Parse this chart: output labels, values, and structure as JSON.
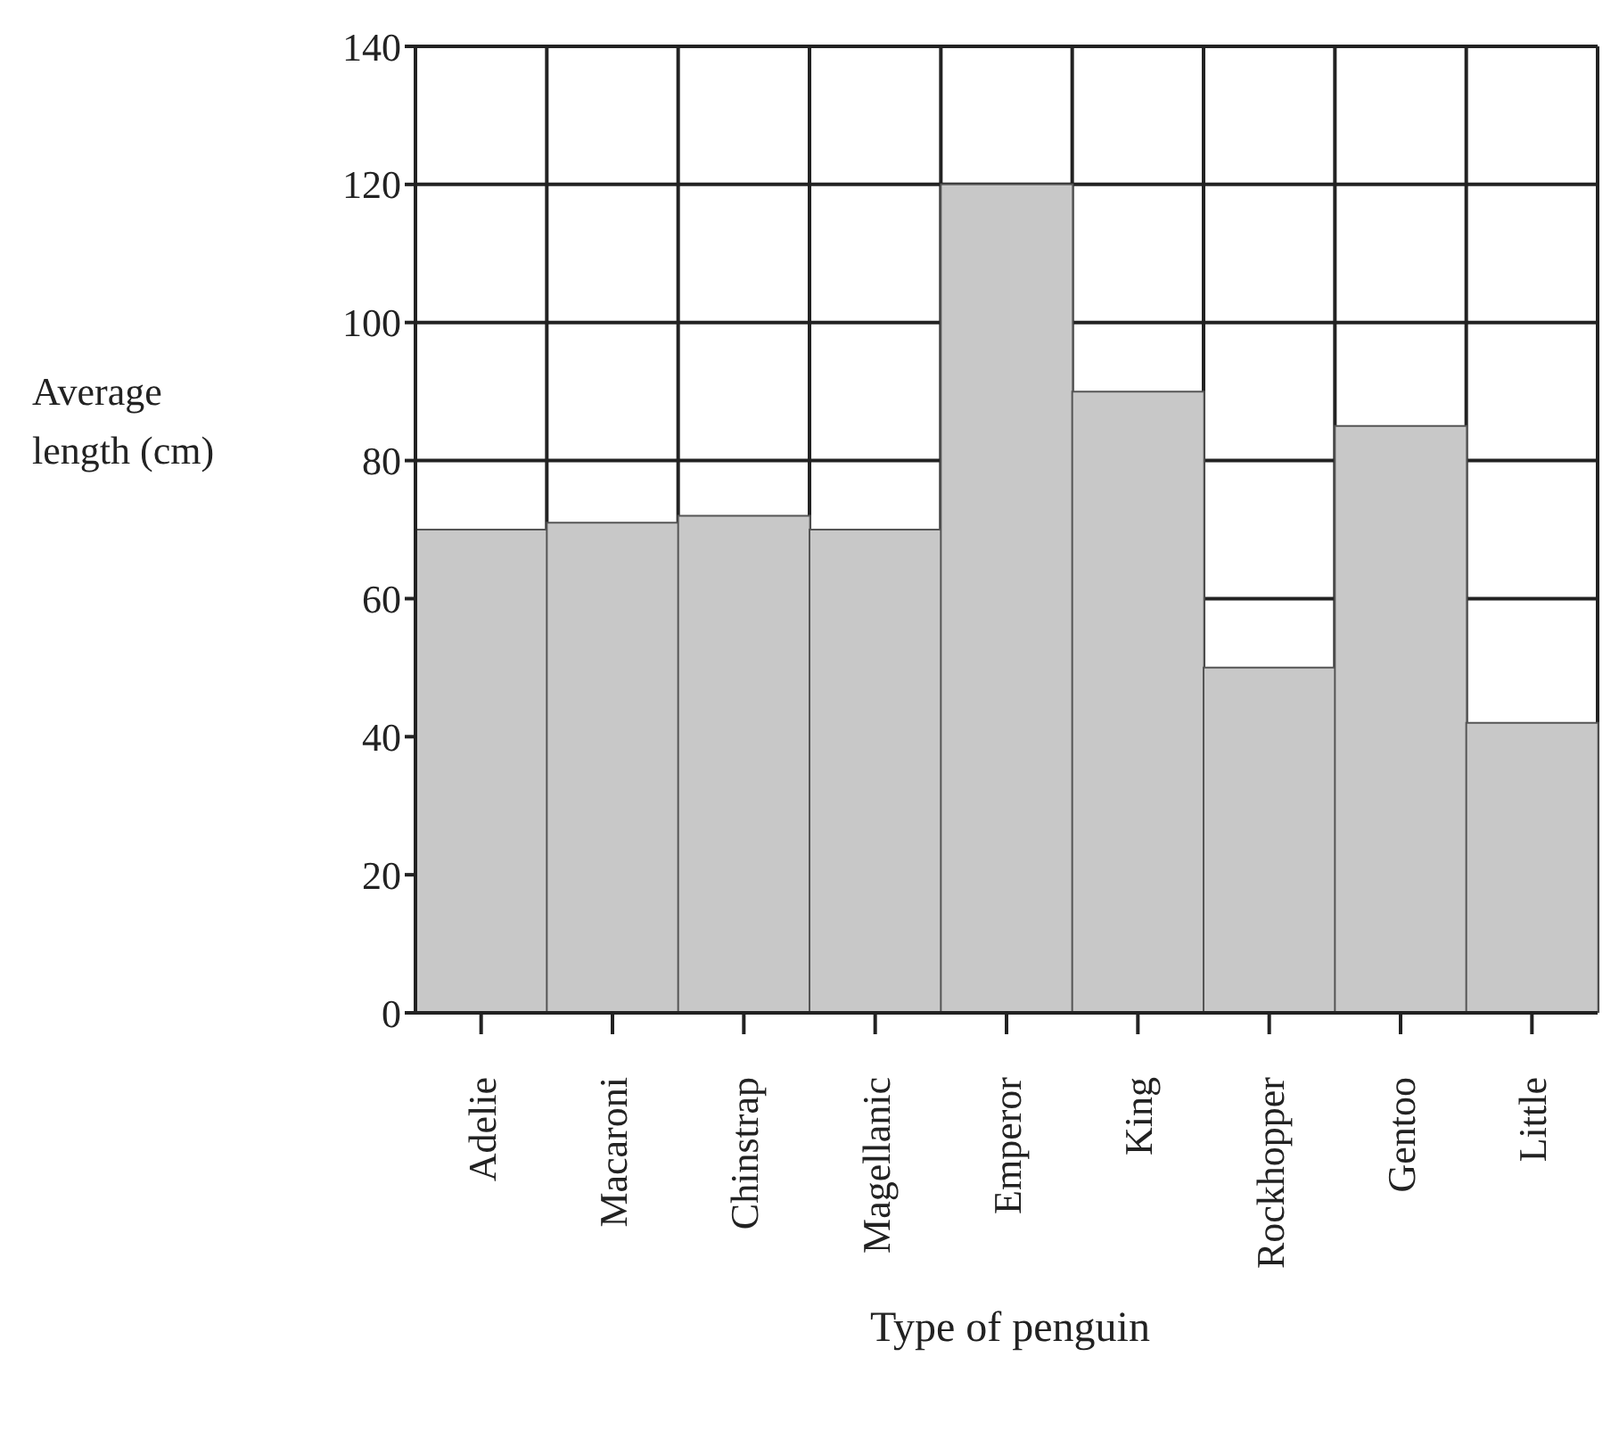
{
  "chart_data": {
    "type": "bar",
    "xlabel": "Type of penguin",
    "ylabel": "Average length (cm)",
    "categories": [
      "Adelie",
      "Macaroni",
      "Chinstrap",
      "Magellanic",
      "Emperor",
      "King",
      "Rockhopper",
      "Gentoo",
      "Little"
    ],
    "values": [
      70,
      71,
      72,
      70,
      120,
      90,
      50,
      85,
      42
    ],
    "color": "#c8c8c8",
    "ylim": [
      0,
      140
    ],
    "yticks": [
      0,
      20,
      40,
      60,
      80,
      100,
      120,
      140
    ],
    "grid": true
  }
}
